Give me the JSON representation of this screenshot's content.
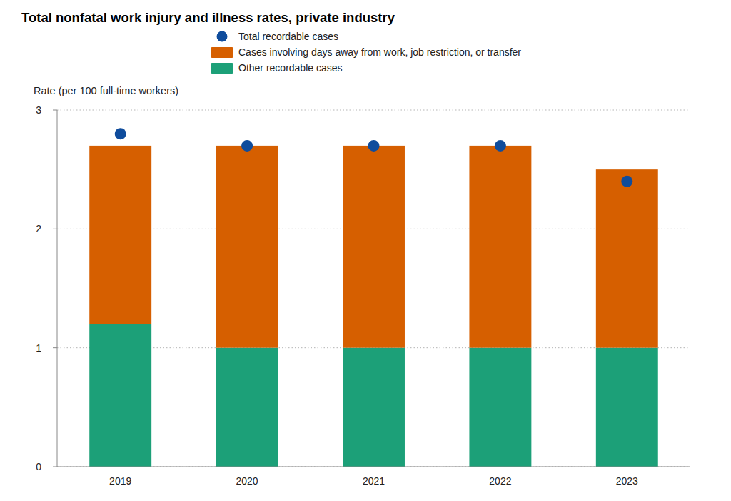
{
  "chart_data": {
    "type": "bar",
    "title": "Total nonfatal work injury and illness rates, private industry",
    "y_label": "Rate (per 100 full-time workers)",
    "categories": [
      "2019",
      "2020",
      "2021",
      "2022",
      "2023"
    ],
    "stacked": true,
    "grid": true,
    "legend": "top",
    "series": [
      {
        "name": "Total recordable cases",
        "type": "scatter",
        "marker": "circle",
        "color": "#0f4c9c",
        "values": [
          2.8,
          2.7,
          2.7,
          2.7,
          2.4
        ]
      },
      {
        "name": "Cases involving days away from work, job restriction, or transfer",
        "type": "bar",
        "color": "#d65f00",
        "values": [
          1.5,
          1.7,
          1.7,
          1.7,
          1.5
        ]
      },
      {
        "name": "Other recordable cases",
        "type": "bar",
        "color": "#1ca078",
        "values": [
          1.2,
          1.0,
          1.0,
          1.0,
          1.0
        ]
      }
    ],
    "ylim": [
      0,
      3
    ],
    "yticks": [
      0,
      1,
      2,
      3
    ]
  }
}
